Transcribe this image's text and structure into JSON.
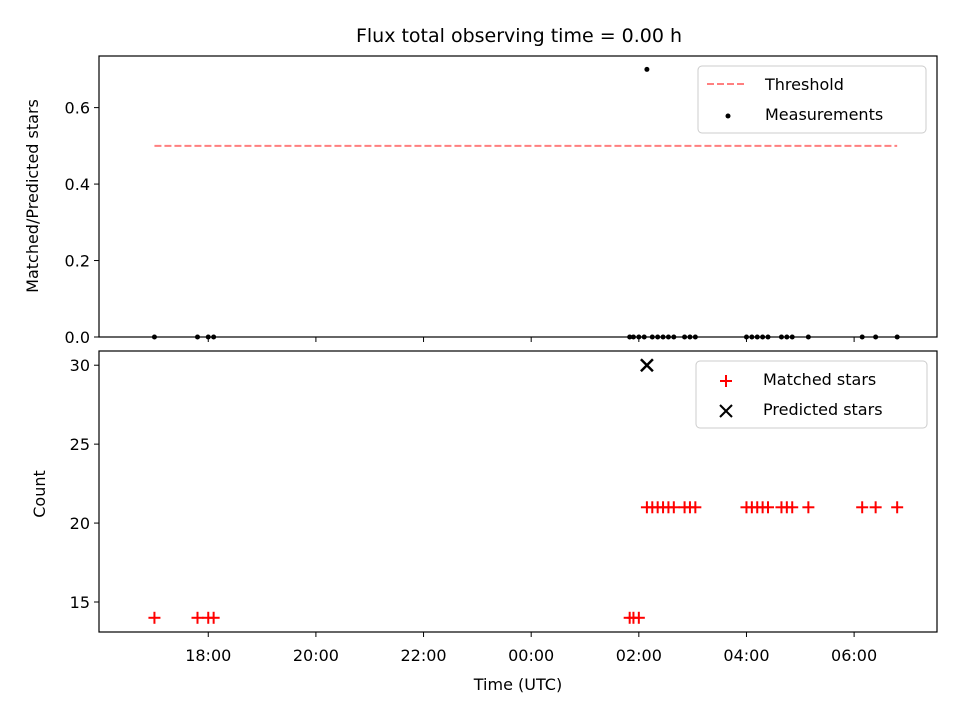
{
  "chart_data": [
    {
      "type": "scatter",
      "title": "Flux total observing time = 0.00 h",
      "xlabel": "",
      "ylabel": "Matched/Predicted stars",
      "x_unit": "hours since 2024-01-01 00:00 UTC (time of day spanning one night)",
      "xlim": [
        15.97,
        31.54
      ],
      "ylim": [
        0.0,
        0.735
      ],
      "yticks": [
        0.0,
        0.2,
        0.4,
        0.6
      ],
      "ytick_labels": [
        "0.0",
        "0.2",
        "0.4",
        "0.6"
      ],
      "legend_position": "top-right",
      "series": [
        {
          "name": "Threshold",
          "kind": "line",
          "style": "dashed",
          "color": "#ff7f7f",
          "x": [
            17.0,
            30.8
          ],
          "y": [
            0.5,
            0.5
          ]
        },
        {
          "name": "Measurements",
          "kind": "points",
          "color": "#000000",
          "x": [
            17.0,
            17.8,
            18.0,
            18.1,
            25.83,
            25.9,
            26.0,
            26.1,
            26.15,
            26.25,
            26.35,
            26.45,
            26.55,
            26.65,
            26.85,
            26.95,
            27.05,
            28.0,
            28.1,
            28.2,
            28.3,
            28.4,
            28.65,
            28.75,
            28.85,
            29.15,
            30.15,
            30.4,
            30.8
          ],
          "y": [
            0,
            0,
            0,
            0,
            0,
            0,
            0,
            0,
            0.7,
            0,
            0,
            0,
            0,
            0,
            0,
            0,
            0,
            0,
            0,
            0,
            0,
            0,
            0,
            0,
            0,
            0,
            0,
            0,
            0
          ]
        }
      ]
    },
    {
      "type": "scatter",
      "title": "",
      "xlabel": "Time (UTC)",
      "ylabel": "Count",
      "xlim": [
        15.97,
        31.54
      ],
      "ylim": [
        13.1,
        30.9
      ],
      "yticks": [
        15,
        20,
        25,
        30
      ],
      "ytick_labels": [
        "15",
        "20",
        "25",
        "30"
      ],
      "xticks": [
        18,
        20,
        22,
        24,
        26,
        28,
        30
      ],
      "xtick_labels": [
        "18:00",
        "20:00",
        "22:00",
        "00:00",
        "02:00",
        "04:00",
        "06:00"
      ],
      "legend_position": "top-right",
      "series": [
        {
          "name": "Matched stars",
          "marker": "plus",
          "color": "#ff0000",
          "x": [
            17.0,
            17.8,
            18.0,
            18.1,
            25.83,
            25.9,
            26.0,
            26.15,
            26.25,
            26.35,
            26.45,
            26.55,
            26.65,
            26.85,
            26.95,
            27.05,
            28.0,
            28.1,
            28.2,
            28.3,
            28.4,
            28.65,
            28.75,
            28.85,
            29.15,
            30.15,
            30.4,
            30.8
          ],
          "y": [
            14,
            14,
            14,
            14,
            14,
            14,
            14,
            21,
            21,
            21,
            21,
            21,
            21,
            21,
            21,
            21,
            21,
            21,
            21,
            21,
            21,
            21,
            21,
            21,
            21,
            21,
            21,
            21
          ]
        },
        {
          "name": "Predicted stars",
          "marker": "x",
          "color": "#000000",
          "x": [
            26.15
          ],
          "y": [
            30
          ]
        }
      ]
    }
  ]
}
